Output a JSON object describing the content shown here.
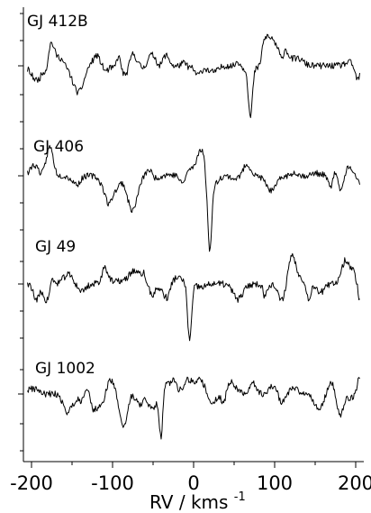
{
  "chart_data": {
    "type": "line",
    "title": "",
    "xlabel": "RV / kms",
    "xlabel_sup": "-1",
    "ylabel": "",
    "xlim": [
      -210,
      210
    ],
    "x_ticks": [
      "-200",
      "-100",
      "0",
      "100",
      "200"
    ],
    "x_tick_values": [
      -200,
      -100,
      0,
      100,
      200
    ],
    "grid": false,
    "legend": "none",
    "series": [
      {
        "name": "GJ 412B",
        "dip_rv": 70,
        "dip_depth": 0.9,
        "dip_width": 3.5,
        "peak_rv": 90,
        "peak_height": 0.35,
        "noise": 0.13,
        "seed": 11
      },
      {
        "name": "GJ 406",
        "dip_rv": 20,
        "dip_depth": 0.95,
        "dip_width": 3.0,
        "peak_rv": 8,
        "peak_height": 0.25,
        "noise": 0.12,
        "seed": 23
      },
      {
        "name": "GJ 49",
        "dip_rv": -5,
        "dip_depth": 0.95,
        "dip_width": 3.5,
        "peak_rv": -15,
        "peak_height": 0.25,
        "noise": 0.14,
        "seed": 37
      },
      {
        "name": "GJ 1002",
        "dip_rv": -40,
        "dip_depth": 0.95,
        "dip_width": 3.0,
        "peak_rv": -25,
        "peak_height": 0.3,
        "noise": 0.13,
        "seed": 51
      }
    ]
  }
}
